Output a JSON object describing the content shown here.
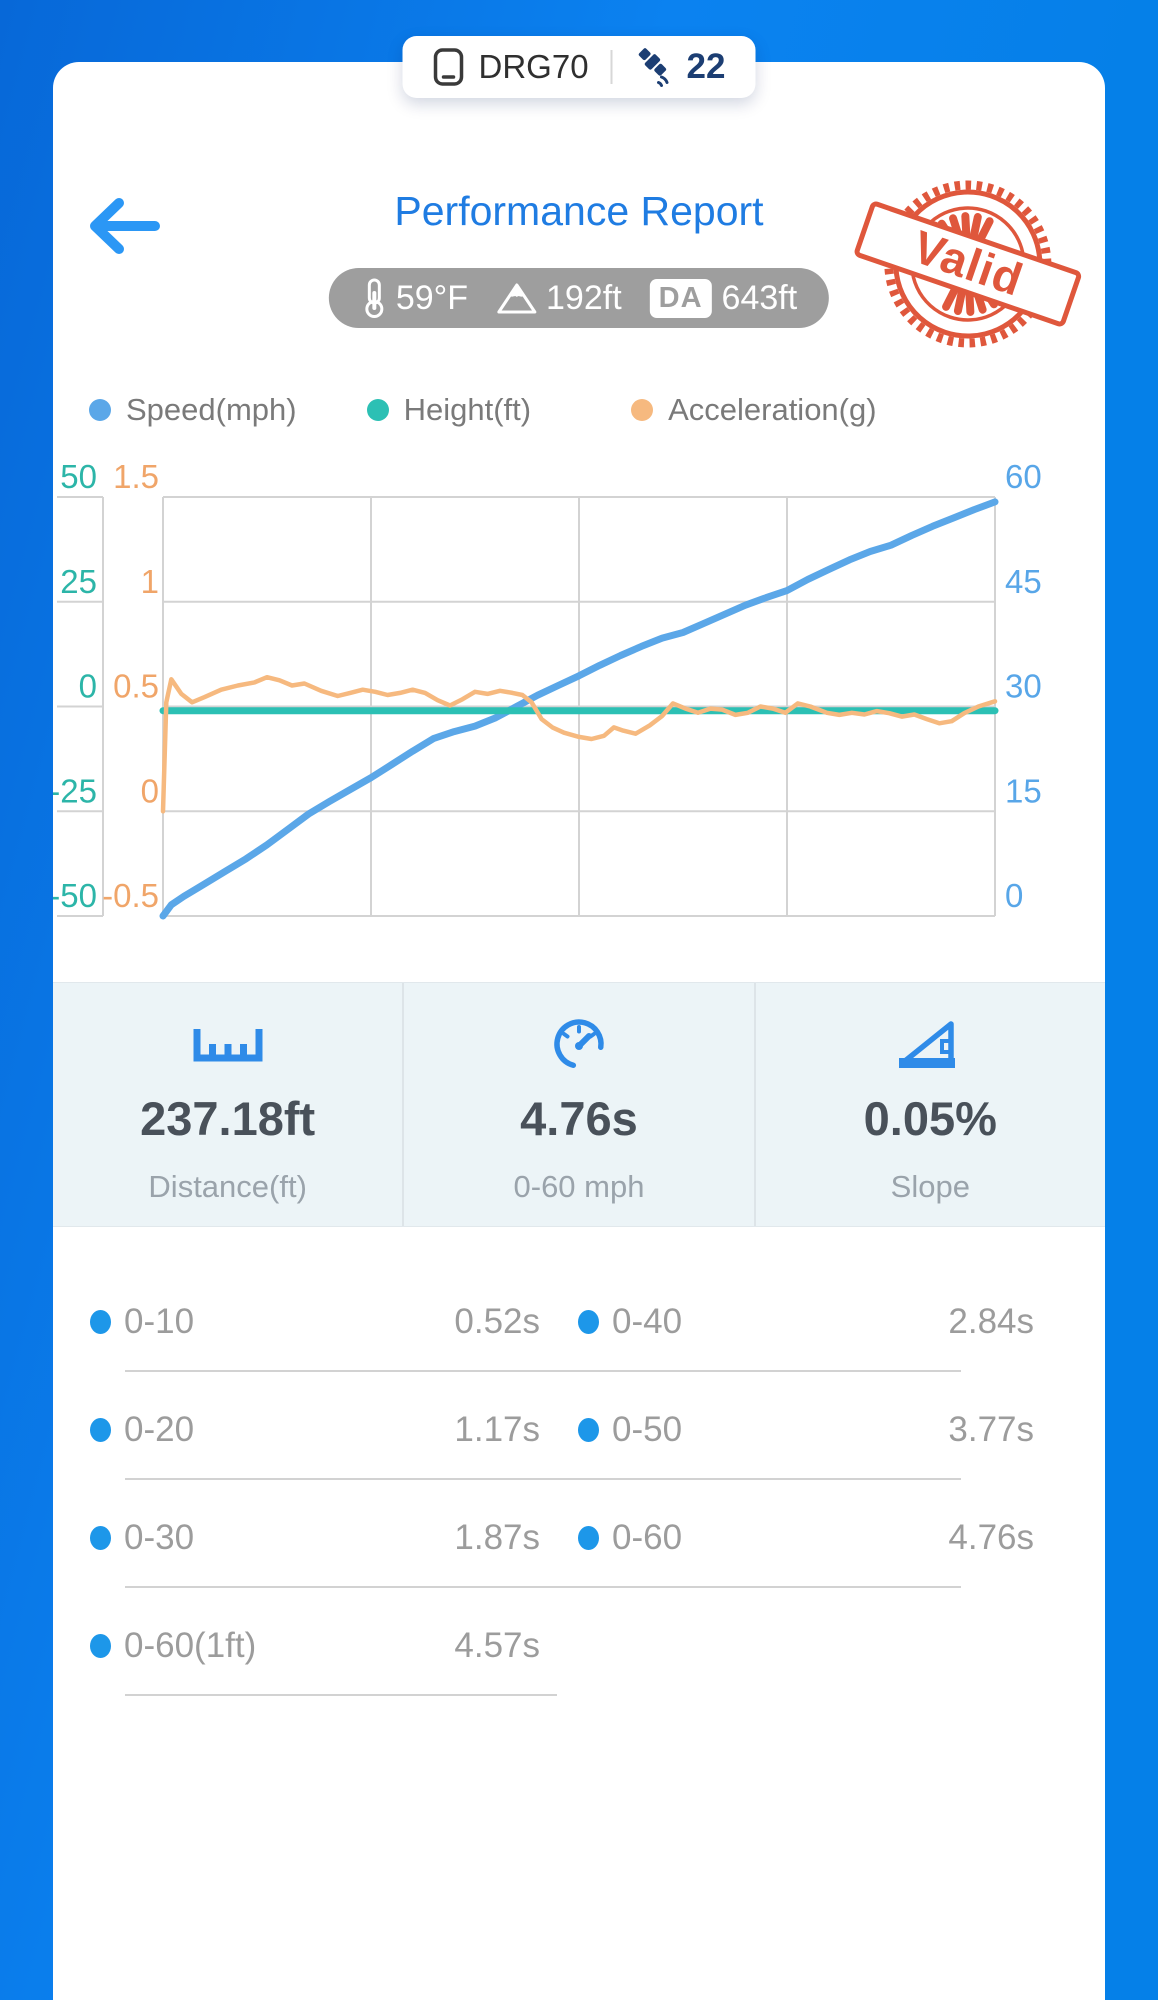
{
  "top_pill": {
    "device_name": "DRG70",
    "satellite_count": "22"
  },
  "header": {
    "title": "Performance Report"
  },
  "environment": {
    "temperature": "59°F",
    "altitude": "192ft",
    "da_badge": "DA",
    "density_altitude": "643ft"
  },
  "stamp": {
    "text": "Valid",
    "color": "#dd4b2e"
  },
  "colors": {
    "background_blue": "#0580e8",
    "title_blue": "#1f7ce2",
    "pill_gray": "#9e9e9e",
    "list_dot_blue": "#1d97e9"
  },
  "chart_data": {
    "type": "line",
    "title": "",
    "x_axis": {
      "label": "",
      "tick_labels_visible": false,
      "range": [
        0,
        1
      ]
    },
    "grid": {
      "h_lines": 5,
      "v_lines": 5
    },
    "legend_position": "top",
    "axes": {
      "height": {
        "label": "Height(ft)",
        "color": "#2cb5a8",
        "range": [
          -50,
          50
        ],
        "ticks": [
          "50",
          "25",
          "0",
          "-25",
          "-50"
        ],
        "side": "left-outer"
      },
      "acceleration": {
        "label": "Acceleration(g)",
        "color": "#f0a569",
        "range": [
          -0.5,
          1.5
        ],
        "ticks": [
          "1.5",
          "1",
          "0.5",
          "0",
          "-0.5"
        ],
        "side": "left-inner"
      },
      "speed": {
        "label": "Speed(mph)",
        "color": "#58a6e8",
        "range": [
          0,
          60
        ],
        "ticks": [
          "60",
          "45",
          "30",
          "15",
          "0"
        ],
        "side": "right"
      }
    },
    "series": [
      {
        "name": "Speed(mph)",
        "axis": "speed",
        "color": "#5ba7e8",
        "width": 7,
        "x": [
          0,
          0.01,
          0.025,
          0.05,
          0.075,
          0.1,
          0.125,
          0.15,
          0.175,
          0.2,
          0.225,
          0.25,
          0.275,
          0.3,
          0.325,
          0.35,
          0.375,
          0.4,
          0.425,
          0.45,
          0.475,
          0.5,
          0.525,
          0.55,
          0.575,
          0.6,
          0.625,
          0.65,
          0.675,
          0.7,
          0.725,
          0.75,
          0.775,
          0.8,
          0.825,
          0.85,
          0.875,
          0.9,
          0.925,
          0.95,
          0.975,
          1
        ],
        "y": [
          0,
          1.6,
          2.8,
          4.6,
          6.4,
          8.2,
          10.2,
          12.4,
          14.6,
          16.4,
          18.1,
          19.8,
          21.7,
          23.6,
          25.4,
          26.4,
          27.2,
          28.4,
          30,
          31.6,
          33,
          34.4,
          35.9,
          37.3,
          38.6,
          39.8,
          40.6,
          41.9,
          43.2,
          44.5,
          45.6,
          46.6,
          48.2,
          49.6,
          51,
          52.2,
          53.1,
          54.5,
          55.8,
          57,
          58.2,
          59.3
        ]
      },
      {
        "name": "Height(ft)",
        "axis": "height",
        "color": "#2cc0b4",
        "width": 7,
        "x": [
          0,
          1
        ],
        "y": [
          -1,
          -1
        ]
      },
      {
        "name": "Acceleration(g)",
        "axis": "acceleration",
        "color": "#f6b97f",
        "width": 4.5,
        "x": [
          0,
          0.004,
          0.01,
          0.022,
          0.035,
          0.05,
          0.07,
          0.09,
          0.11,
          0.125,
          0.14,
          0.155,
          0.17,
          0.19,
          0.21,
          0.225,
          0.24,
          0.255,
          0.27,
          0.285,
          0.3,
          0.315,
          0.33,
          0.345,
          0.36,
          0.375,
          0.39,
          0.405,
          0.42,
          0.432,
          0.443,
          0.455,
          0.468,
          0.482,
          0.5,
          0.515,
          0.53,
          0.542,
          0.553,
          0.568,
          0.585,
          0.6,
          0.613,
          0.628,
          0.643,
          0.658,
          0.672,
          0.688,
          0.703,
          0.718,
          0.733,
          0.748,
          0.763,
          0.778,
          0.798,
          0.813,
          0.828,
          0.843,
          0.858,
          0.873,
          0.888,
          0.903,
          0.918,
          0.933,
          0.948,
          0.963,
          0.98,
          1
        ],
        "y": [
          0,
          0.52,
          0.63,
          0.56,
          0.52,
          0.545,
          0.58,
          0.6,
          0.615,
          0.64,
          0.625,
          0.6,
          0.61,
          0.575,
          0.55,
          0.565,
          0.58,
          0.57,
          0.555,
          0.565,
          0.58,
          0.565,
          0.53,
          0.505,
          0.535,
          0.57,
          0.56,
          0.575,
          0.565,
          0.555,
          0.52,
          0.44,
          0.4,
          0.375,
          0.355,
          0.345,
          0.36,
          0.4,
          0.385,
          0.37,
          0.41,
          0.455,
          0.515,
          0.49,
          0.47,
          0.49,
          0.485,
          0.46,
          0.47,
          0.5,
          0.49,
          0.47,
          0.515,
          0.5,
          0.47,
          0.46,
          0.47,
          0.462,
          0.478,
          0.468,
          0.452,
          0.462,
          0.44,
          0.42,
          0.43,
          0.468,
          0.5,
          0.525
        ]
      }
    ]
  },
  "stats": [
    {
      "value": "237.18ft",
      "label": "Distance(ft)",
      "icon": "ruler-icon"
    },
    {
      "value": "4.76s",
      "label": "0-60 mph",
      "icon": "speedometer-icon"
    },
    {
      "value": "0.05%",
      "label": "Slope",
      "icon": "slope-icon"
    }
  ],
  "splits": {
    "rows": [
      {
        "left": {
          "label": "0-10",
          "value": "0.52s"
        },
        "right": {
          "label": "0-40",
          "value": "2.84s"
        }
      },
      {
        "left": {
          "label": "0-20",
          "value": "1.17s"
        },
        "right": {
          "label": "0-50",
          "value": "3.77s"
        }
      },
      {
        "left": {
          "label": "0-30",
          "value": "1.87s"
        },
        "right": {
          "label": "0-60",
          "value": "4.76s"
        }
      },
      {
        "left": {
          "label": "0-60(1ft)",
          "value": "4.57s"
        },
        "right": null
      }
    ]
  }
}
